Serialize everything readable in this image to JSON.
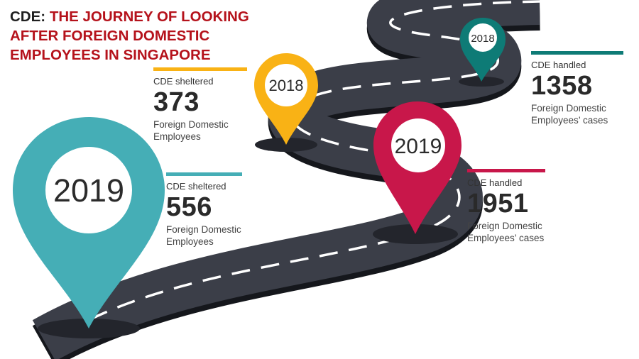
{
  "title": {
    "prefix": "CDE:",
    "text": "THE JOURNEY OF LOOKING AFTER FOREIGN DOMESTIC EMPLOYEES IN SINGAPORE"
  },
  "colors": {
    "title_red": "#b5121b",
    "road": "#3b3e48",
    "road_edge": "#15171c",
    "teal_light": "#45aeb6",
    "teal_dark": "#0e7b76",
    "yellow": "#f9b215",
    "crimson": "#c8174a"
  },
  "pins": [
    {
      "year": "2019",
      "color": "teal-light"
    },
    {
      "year": "2018",
      "color": "yellow"
    },
    {
      "year": "2019",
      "color": "crimson"
    },
    {
      "year": "2018",
      "color": "teal-dark"
    }
  ],
  "stats": [
    {
      "label": "CDE sheltered",
      "number": "373",
      "line1": "Foreign Domestic",
      "line2": "Employees"
    },
    {
      "label": "CDE sheltered",
      "number": "556",
      "line1": "Foreign Domestic",
      "line2": "Employees"
    },
    {
      "label": "CDE handled",
      "number": "1951",
      "line1": "Foreign Domestic",
      "line2": "Employees’ cases"
    },
    {
      "label": "CDE handled",
      "number": "1358",
      "line1": "Foreign Domestic",
      "line2": "Employees’ cases"
    }
  ]
}
